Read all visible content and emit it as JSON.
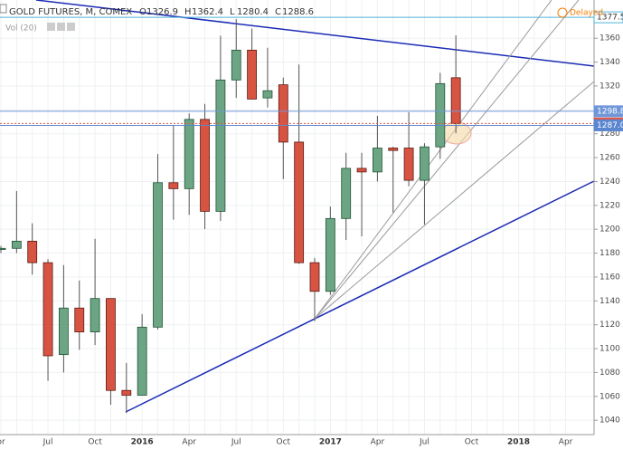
{
  "chart_data": {
    "type": "candlestick",
    "title": "GOLD FUTURES, M, COMEX",
    "legend_values": [
      {
        "key": "O",
        "value": 1326.9
      },
      {
        "key": "H",
        "value": 1362.4
      },
      {
        "key": "L",
        "value": 1280.4
      },
      {
        "key": "C",
        "value": 1288.6
      }
    ],
    "volume_label": "Vol (20)",
    "status": "Delayed",
    "categories": [
      "pr",
      null,
      null,
      "Jul",
      null,
      null,
      "Oct",
      null,
      null,
      "2016",
      null,
      null,
      "Apr",
      null,
      null,
      "Jul",
      null,
      null,
      "Oct",
      null,
      null,
      "2017",
      null,
      null,
      "Apr",
      null,
      null,
      "Jul",
      null,
      null,
      "Oct",
      null,
      null,
      "2018",
      null,
      null,
      "Apr"
    ],
    "open": [
      1183,
      1184,
      1190,
      1172,
      1095,
      1134,
      1114,
      1142,
      1065,
      1061,
      1118,
      1239,
      1234,
      1292,
      1215,
      1325,
      1350,
      1310,
      1321,
      1273,
      1172,
      1148,
      1209,
      1251,
      1248,
      1268,
      1268,
      1241,
      1269,
      1326.9,
      null,
      null,
      null,
      null,
      null,
      null,
      null
    ],
    "high": [
      1186,
      1232,
      1205,
      1175,
      1170,
      1157,
      1192,
      1142,
      1088,
      1129,
      1263,
      1287,
      1297,
      1305,
      1362,
      1376,
      1368,
      1352,
      1327,
      1338,
      1176,
      1219,
      1264,
      1264,
      1295,
      1269,
      1298,
      1272,
      1331,
      1362.4,
      null,
      null,
      null,
      null,
      null,
      null,
      null
    ],
    "low": [
      1180,
      1180,
      1162,
      1073,
      1080,
      1099,
      1103,
      1053,
      1046,
      1061,
      1116,
      1208,
      1212,
      1200,
      1207,
      1310,
      1309,
      1302,
      1242,
      1171,
      1123,
      1145,
      1191,
      1194,
      1240,
      1214,
      1236,
      1204,
      1259,
      1280.4,
      null,
      null,
      null,
      null,
      null,
      null,
      null
    ],
    "close": [
      1184,
      1190,
      1172,
      1094,
      1134,
      1114,
      1142,
      1065,
      1061,
      1118,
      1239,
      1234,
      1292,
      1215,
      1325,
      1350,
      1309,
      1316,
      1273,
      1172,
      1148,
      1209,
      1251,
      1248,
      1268,
      1266,
      1241,
      1269,
      1322,
      1288.6,
      null,
      null,
      null,
      null,
      null,
      null,
      null
    ],
    "up_color": "#6ba583",
    "down_color": "#d75442",
    "ylim": [
      1028,
      1392
    ],
    "yticks": [
      1040,
      1060,
      1080,
      1100,
      1120,
      1140,
      1160,
      1180,
      1200,
      1220,
      1240,
      1260,
      1280,
      1300,
      1320,
      1340,
      1360
    ],
    "price_lines": [
      {
        "value": 1377.5,
        "color": "#4fb3d9",
        "style": "outline"
      },
      {
        "value": 1298.8,
        "color": "#6f96d8",
        "style": "filled"
      },
      {
        "value": 1288.6,
        "color": "#e0584a",
        "style": "filled"
      },
      {
        "value": 1287,
        "label": "1287.0",
        "color": "#5b86d0",
        "style": "filled"
      }
    ],
    "grid": true
  }
}
